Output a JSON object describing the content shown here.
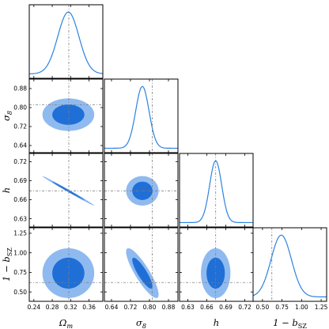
{
  "chart_data": {
    "type": "corner",
    "parameters": [
      {
        "key": "omega_m",
        "label": "Ωm",
        "range": [
          0.23,
          0.39
        ],
        "ticks": [
          "0.24",
          "0.28",
          "0.32",
          "0.36"
        ],
        "truth": 0.316
      },
      {
        "key": "sigma_8",
        "label": "σ8",
        "range": [
          0.61,
          0.92
        ],
        "ticks": [
          "0.64",
          "0.72",
          "0.80",
          "0.88"
        ],
        "truth": 0.812
      },
      {
        "key": "h",
        "label": "h",
        "range": [
          0.617,
          0.733
        ],
        "ticks": [
          "0.63",
          "0.66",
          "0.69",
          "0.72"
        ],
        "truth": 0.674
      },
      {
        "key": "one_minus_bsz",
        "label": "1 − bSZ",
        "range": [
          0.38,
          1.32
        ],
        "ticks": [
          "0.50",
          "0.75",
          "1.00",
          "1.25"
        ],
        "truth": 0.62
      }
    ],
    "marginals": [
      {
        "parameter": "omega_m",
        "mean": 0.315,
        "sigma": 0.023
      },
      {
        "parameter": "sigma_8",
        "mean": 0.77,
        "sigma": 0.028
      },
      {
        "parameter": "h",
        "mean": 0.674,
        "sigma": 0.0095
      },
      {
        "parameter": "one_minus_bsz",
        "mean": 0.74,
        "sigma": 0.13
      }
    ],
    "contour_levels": [
      "68%",
      "95%"
    ],
    "colors": {
      "inner": "#1f6fd6",
      "outer": "#8fbaf0",
      "line": "#2c83e0",
      "truth": "#7f7f7f"
    },
    "grid": false
  }
}
